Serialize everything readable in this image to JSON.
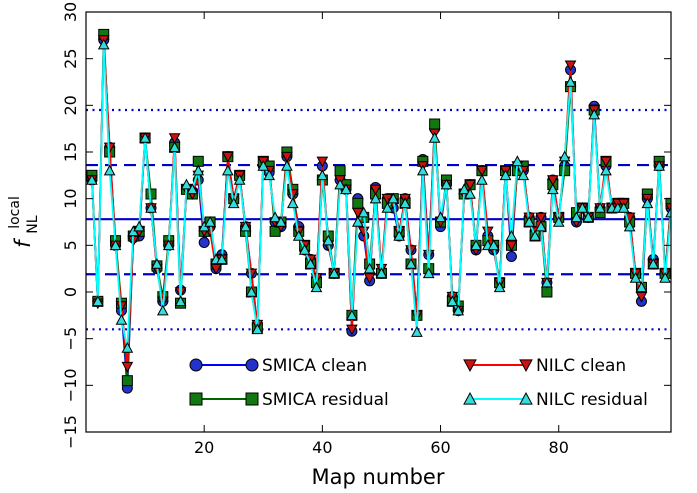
{
  "chart_data": {
    "type": "line",
    "xlabel": "Map number",
    "ylabel_main": "f",
    "ylabel_sup": "local",
    "ylabel_sub": "NL",
    "xlim": [
      0,
      99
    ],
    "ylim": [
      -15,
      30
    ],
    "xticks": [
      20,
      40,
      60,
      80
    ],
    "yticks": [
      -15,
      -10,
      -5,
      0,
      5,
      10,
      15,
      20,
      25,
      30
    ],
    "ytick_labels": [
      "−15",
      "−10",
      "−5",
      "0",
      "5",
      "10",
      "15",
      "20",
      "25",
      "30"
    ],
    "reference_lines": [
      {
        "y": 7.8,
        "style": "solid",
        "color": "#0000cc"
      },
      {
        "y": 13.6,
        "style": "dashed",
        "color": "#0000cc"
      },
      {
        "y": 1.9,
        "style": "dashed",
        "color": "#0000cc"
      },
      {
        "y": 19.5,
        "style": "dotted",
        "color": "#0000cc"
      },
      {
        "y": -4.0,
        "style": "dotted",
        "color": "#0000cc"
      }
    ],
    "legend_position": "lower center",
    "series": [
      {
        "name": "SMICA clean",
        "color": "#0000ff",
        "fill": "#2233cc",
        "marker": "circle",
        "x": [
          1,
          2,
          3,
          4,
          5,
          6,
          7,
          8,
          9,
          10,
          11,
          12,
          13,
          14,
          15,
          16,
          17,
          18,
          19,
          20,
          21,
          22,
          23,
          24,
          25,
          26,
          27,
          28,
          29,
          30,
          31,
          32,
          33,
          34,
          35,
          36,
          37,
          38,
          39,
          40,
          41,
          42,
          43,
          44,
          45,
          46,
          47,
          48,
          49,
          50,
          51,
          52,
          53,
          54,
          55,
          56,
          57,
          58,
          59,
          60,
          61,
          62,
          63,
          64,
          65,
          66,
          67,
          68,
          69,
          70,
          71,
          72,
          73,
          74,
          75,
          76,
          77,
          78,
          79,
          80,
          81,
          82,
          83,
          84,
          85,
          86,
          87,
          88,
          89,
          90,
          91,
          92,
          93,
          94,
          95,
          96,
          97,
          98,
          99
        ],
        "y": [
          12.0,
          -1.0,
          27.0,
          15.5,
          5.0,
          -2.0,
          -10.3,
          5.8,
          6.0,
          16.5,
          9.0,
          2.5,
          -1.0,
          5.0,
          16.0,
          0.2,
          11.0,
          10.8,
          12.0,
          5.3,
          7.0,
          2.5,
          4.0,
          14.5,
          10.0,
          12.5,
          7.0,
          2.0,
          -3.5,
          13.5,
          12.8,
          7.5,
          7.0,
          14.5,
          10.5,
          7.0,
          4.5,
          3.5,
          1.5,
          13.5,
          5.0,
          2.0,
          12.0,
          11.0,
          -4.2,
          10.0,
          6.0,
          1.2,
          11.2,
          2.0,
          10.0,
          9.0,
          6.0,
          10.0,
          4.5,
          -2.5,
          14.2,
          4.0,
          17.5,
          7.0,
          11.5,
          -0.5,
          -2.0,
          10.5,
          11.5,
          4.5,
          13.0,
          6.0,
          4.5,
          1.0,
          13.0,
          3.8,
          13.5,
          13.0,
          8.0,
          6.5,
          8.0,
          1.0,
          12.0,
          8.0,
          13.5,
          23.8,
          7.5,
          9.0,
          8.0,
          19.9,
          9.0,
          13.5,
          9.0,
          9.5,
          9.5,
          8.0,
          2.0,
          -1.0,
          10.0,
          3.5,
          13.5,
          2.0,
          9.0
        ]
      },
      {
        "name": "SMICA residual",
        "color": "#006400",
        "fill": "#117711",
        "marker": "square",
        "x": [
          1,
          2,
          3,
          4,
          5,
          6,
          7,
          8,
          9,
          10,
          11,
          12,
          13,
          14,
          15,
          16,
          17,
          18,
          19,
          20,
          21,
          22,
          23,
          24,
          25,
          26,
          27,
          28,
          29,
          30,
          31,
          32,
          33,
          34,
          35,
          36,
          37,
          38,
          39,
          40,
          41,
          42,
          43,
          44,
          45,
          46,
          47,
          48,
          49,
          50,
          51,
          52,
          53,
          54,
          55,
          56,
          57,
          58,
          59,
          60,
          61,
          62,
          63,
          64,
          65,
          66,
          67,
          68,
          69,
          70,
          71,
          72,
          73,
          74,
          75,
          76,
          77,
          78,
          79,
          80,
          81,
          82,
          83,
          84,
          85,
          86,
          87,
          88,
          89,
          90,
          91,
          92,
          93,
          94,
          95,
          96,
          97,
          98,
          99
        ],
        "y": [
          12.5,
          -1.0,
          27.6,
          15.0,
          5.5,
          -1.2,
          -9.5,
          6.0,
          6.5,
          16.5,
          10.5,
          2.8,
          -0.5,
          5.5,
          15.5,
          -1.2,
          11.0,
          10.5,
          14.0,
          6.5,
          7.5,
          3.0,
          3.5,
          14.5,
          10.0,
          12.5,
          6.5,
          0.0,
          -3.8,
          14.0,
          13.5,
          6.5,
          7.5,
          15.0,
          11.0,
          6.5,
          5.0,
          3.0,
          1.0,
          12.0,
          6.0,
          2.0,
          13.0,
          11.5,
          -2.5,
          9.5,
          8.0,
          3.0,
          10.5,
          2.0,
          9.5,
          10.0,
          6.5,
          9.5,
          3.0,
          -2.5,
          14.0,
          2.5,
          18.0,
          7.5,
          12.0,
          -1.0,
          -1.5,
          10.5,
          11.5,
          5.0,
          13.0,
          5.5,
          5.0,
          1.0,
          13.0,
          5.0,
          13.0,
          13.5,
          7.5,
          6.0,
          7.0,
          0.0,
          11.5,
          8.0,
          13.0,
          22.0,
          8.5,
          9.0,
          8.0,
          19.5,
          8.5,
          14.0,
          9.0,
          9.5,
          9.5,
          7.5,
          2.0,
          0.5,
          10.5,
          3.0,
          14.0,
          2.0,
          9.5
        ]
      },
      {
        "name": "NILC clean",
        "color": "#ff0000",
        "fill": "#cc1111",
        "marker": "triangle-down",
        "x": [
          1,
          2,
          3,
          4,
          5,
          6,
          7,
          8,
          9,
          10,
          11,
          12,
          13,
          14,
          15,
          16,
          17,
          18,
          19,
          20,
          21,
          22,
          23,
          24,
          25,
          26,
          27,
          28,
          29,
          30,
          31,
          32,
          33,
          34,
          35,
          36,
          37,
          38,
          39,
          40,
          41,
          42,
          43,
          44,
          45,
          46,
          47,
          48,
          49,
          50,
          51,
          52,
          53,
          54,
          55,
          56,
          57,
          58,
          59,
          60,
          61,
          62,
          63,
          64,
          65,
          66,
          67,
          68,
          69,
          70,
          71,
          72,
          73,
          74,
          75,
          76,
          77,
          78,
          79,
          80,
          81,
          82,
          83,
          84,
          85,
          86,
          87,
          88,
          89,
          90,
          91,
          92,
          93,
          94,
          95,
          96,
          97,
          98,
          99
        ],
        "y": [
          12.0,
          -1.2,
          27.0,
          15.5,
          5.0,
          -1.5,
          -8.0,
          5.5,
          6.5,
          16.5,
          9.0,
          2.5,
          -1.0,
          5.0,
          16.5,
          0.0,
          11.0,
          10.5,
          12.5,
          6.5,
          6.5,
          2.5,
          3.5,
          14.5,
          10.0,
          12.5,
          7.0,
          2.0,
          -3.5,
          14.0,
          13.0,
          7.5,
          7.0,
          14.5,
          10.5,
          6.5,
          5.0,
          3.5,
          1.5,
          14.0,
          5.0,
          2.0,
          12.0,
          11.0,
          -4.0,
          8.5,
          6.5,
          1.5,
          11.0,
          2.5,
          10.0,
          9.5,
          6.5,
          10.0,
          4.5,
          -2.5,
          13.5,
          4.0,
          17.0,
          7.5,
          11.5,
          -0.5,
          -2.0,
          10.5,
          11.5,
          4.5,
          13.0,
          6.5,
          4.5,
          1.0,
          13.0,
          5.0,
          13.5,
          13.0,
          8.0,
          6.5,
          8.0,
          1.0,
          12.0,
          8.0,
          14.0,
          24.3,
          7.5,
          9.0,
          8.0,
          19.5,
          9.0,
          14.0,
          9.0,
          9.5,
          9.5,
          8.0,
          2.0,
          -0.5,
          10.0,
          3.0,
          13.5,
          2.0,
          9.0
        ]
      },
      {
        "name": "NILC residual",
        "color": "#00ffff",
        "fill": "#33dddd",
        "marker": "triangle-up",
        "x": [
          1,
          2,
          3,
          4,
          5,
          6,
          7,
          8,
          9,
          10,
          11,
          12,
          13,
          14,
          15,
          16,
          17,
          18,
          19,
          20,
          21,
          22,
          23,
          24,
          25,
          26,
          27,
          28,
          29,
          30,
          31,
          32,
          33,
          34,
          35,
          36,
          37,
          38,
          39,
          40,
          41,
          42,
          43,
          44,
          45,
          46,
          47,
          48,
          49,
          50,
          51,
          52,
          53,
          54,
          55,
          56,
          57,
          58,
          59,
          60,
          61,
          62,
          63,
          64,
          65,
          66,
          67,
          68,
          69,
          70,
          71,
          72,
          73,
          74,
          75,
          76,
          77,
          78,
          79,
          80,
          81,
          82,
          83,
          84,
          85,
          86,
          87,
          88,
          89,
          90,
          91,
          92,
          93,
          94,
          95,
          96,
          97,
          98,
          99
        ],
        "y": [
          12.0,
          -1.0,
          26.5,
          13.0,
          5.0,
          -3.0,
          -6.0,
          6.5,
          7.0,
          16.5,
          9.0,
          3.0,
          -2.0,
          5.0,
          15.5,
          -1.0,
          11.5,
          11.0,
          13.0,
          7.0,
          7.5,
          3.5,
          3.5,
          13.0,
          9.5,
          12.0,
          7.0,
          0.0,
          -4.0,
          13.5,
          12.5,
          8.0,
          7.5,
          13.5,
          9.5,
          6.0,
          4.5,
          3.0,
          0.5,
          12.5,
          5.5,
          2.0,
          11.5,
          11.0,
          -2.5,
          7.5,
          8.5,
          2.5,
          10.0,
          2.0,
          9.0,
          10.0,
          6.0,
          9.5,
          3.0,
          -4.3,
          13.0,
          2.0,
          16.5,
          8.0,
          11.5,
          -1.0,
          -2.0,
          11.0,
          10.5,
          5.0,
          12.0,
          5.0,
          5.0,
          0.5,
          12.5,
          6.0,
          14.0,
          12.5,
          7.5,
          6.0,
          7.0,
          1.0,
          11.0,
          7.5,
          14.5,
          22.5,
          8.0,
          9.0,
          8.0,
          19.0,
          9.0,
          13.0,
          9.0,
          9.0,
          9.0,
          7.0,
          1.5,
          0.5,
          9.5,
          3.0,
          13.5,
          1.5,
          8.5
        ]
      }
    ]
  }
}
